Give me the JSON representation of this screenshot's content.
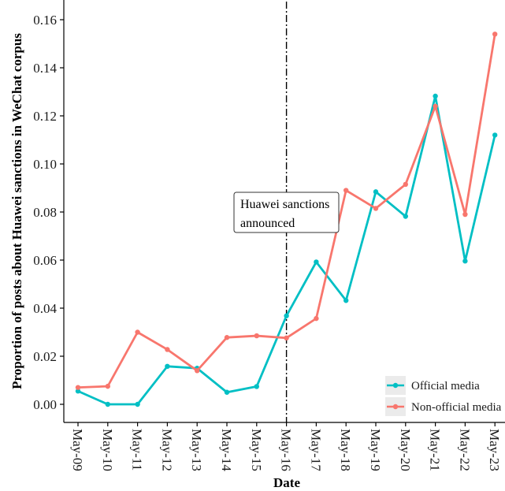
{
  "chart_data": {
    "type": "line",
    "xlabel": "Date",
    "ylabel": "Proportion of posts about Huawei sanctions in WeChat corpus",
    "categories": [
      "May-09",
      "May-10",
      "May-11",
      "May-12",
      "May-13",
      "May-14",
      "May-15",
      "May-16",
      "May-17",
      "May-18",
      "May-19",
      "May-20",
      "May-21",
      "May-22",
      "May-23"
    ],
    "ylim": [
      -0.007,
      0.168
    ],
    "yticks": [
      0.0,
      0.02,
      0.04,
      0.06,
      0.08,
      0.1,
      0.12,
      0.14,
      0.16
    ],
    "ytick_labels": [
      "0.00",
      "0.02",
      "0.04",
      "0.06",
      "0.08",
      "0.10",
      "0.12",
      "0.14",
      "0.16"
    ],
    "grid": false,
    "series": [
      {
        "name": "Official media",
        "color": "#00BFC4",
        "values": [
          0.0055,
          0.0,
          0.0,
          0.0158,
          0.015,
          0.005,
          0.0074,
          0.0368,
          0.0592,
          0.0432,
          0.0884,
          0.0782,
          0.1282,
          0.0596,
          0.112
        ]
      },
      {
        "name": "Non-official media",
        "color": "#F8766D",
        "values": [
          0.007,
          0.0075,
          0.03,
          0.0228,
          0.014,
          0.0278,
          0.0285,
          0.0276,
          0.0357,
          0.089,
          0.0815,
          0.0915,
          0.124,
          0.079,
          0.154
        ]
      }
    ],
    "legend": {
      "placement": "bottom-right",
      "items": [
        "Official media",
        "Non-official media"
      ]
    },
    "annotation": {
      "line_at": "May-16",
      "line_style": "dash-dot",
      "text_lines": [
        "Huawei sanctions",
        "announced"
      ]
    }
  }
}
